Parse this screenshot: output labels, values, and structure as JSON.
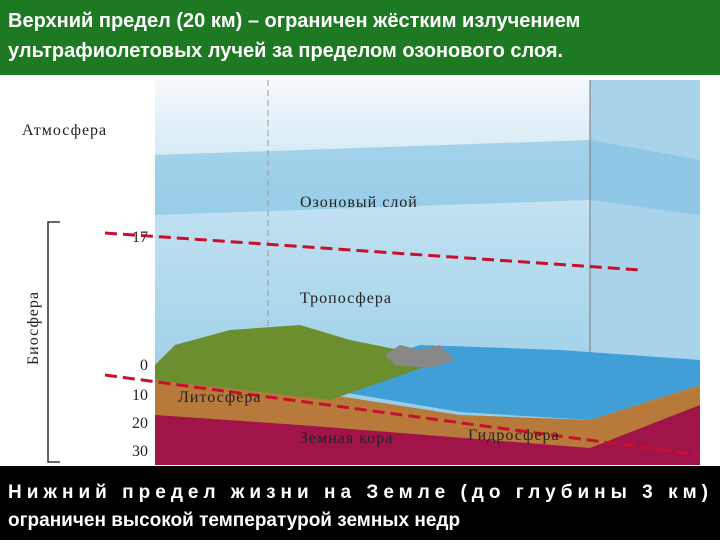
{
  "header": {
    "lines": [
      "Верхний предел (20 км) – ограничен жёстким излучением",
      "ультрафиолетовых лучей за пределом озонового слоя."
    ]
  },
  "diagram": {
    "labels": {
      "atmosphere": "Атмосфера",
      "ozone": "Озоновый слой",
      "troposphere": "Тропосфера",
      "lithosphere": "Литосфера",
      "crust": "Земная кора",
      "hydrosphere": "Гидросфера",
      "biosphere": "Биосфера"
    },
    "scale": [
      "17",
      "0",
      "10",
      "20",
      "30"
    ]
  },
  "footer": {
    "lines": [
      "Нижний предел жизни на Земле  (до глубины 3 км)",
      "ограничен высокой температурой земных недр"
    ]
  }
}
